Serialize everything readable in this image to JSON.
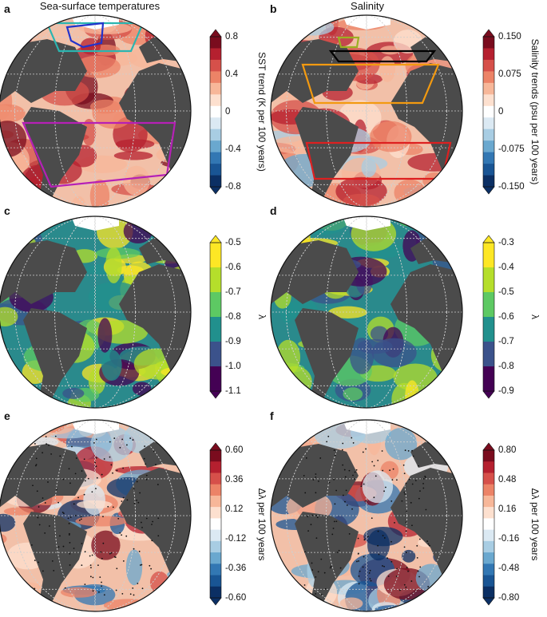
{
  "columns": {
    "left_title": "Sea-surface temperatures",
    "right_title": "Salinity"
  },
  "panels": [
    {
      "id": "a",
      "letter": "a",
      "colormap": "redblue",
      "colorbar": {
        "label": "SST trend (K per 100 years)",
        "ticks": [
          "0.8",
          "0.4",
          "0",
          "-0.4",
          "-0.8"
        ]
      },
      "regions": [
        {
          "color": "#2bb5b0"
        },
        {
          "color": "#2233cc"
        },
        {
          "color": "#b620b6"
        }
      ]
    },
    {
      "id": "b",
      "letter": "b",
      "colormap": "redblue",
      "colorbar": {
        "label": "Salinity trends (psu per 100 years)",
        "ticks": [
          "0.150",
          "0.075",
          "0",
          "-0.075",
          "-0.150"
        ]
      },
      "regions": [
        {
          "color": "#000000"
        },
        {
          "color": "#9bb022"
        },
        {
          "color": "#f39a10"
        },
        {
          "color": "#dd2020"
        }
      ]
    },
    {
      "id": "c",
      "letter": "c",
      "colormap": "viridis",
      "colorbar": {
        "label": "λ",
        "ticks": [
          "-0.5",
          "-0.6",
          "-0.7",
          "-0.8",
          "-0.9",
          "-1.0",
          "-1.1"
        ]
      },
      "regions": []
    },
    {
      "id": "d",
      "letter": "d",
      "colormap": "viridis",
      "colorbar": {
        "label": "λ",
        "ticks": [
          "-0.3",
          "-0.4",
          "-0.5",
          "-0.6",
          "-0.7",
          "-0.8",
          "-0.9"
        ]
      },
      "regions": []
    },
    {
      "id": "e",
      "letter": "e",
      "colormap": "redblue",
      "colorbar": {
        "label": "Δλ per 100 years",
        "ticks": [
          "0.60",
          "0.36",
          "0.12",
          "-0.12",
          "-0.36",
          "-0.60"
        ]
      },
      "regions": []
    },
    {
      "id": "f",
      "letter": "f",
      "colormap": "redblue",
      "colorbar": {
        "label": "Δλ per 100 years",
        "ticks": [
          "0.80",
          "0.48",
          "0.16",
          "-0.16",
          "-0.48",
          "-0.80"
        ]
      },
      "regions": []
    }
  ],
  "colors": {
    "land": "#4b4b4b",
    "graticule": "#cfcfcf"
  }
}
